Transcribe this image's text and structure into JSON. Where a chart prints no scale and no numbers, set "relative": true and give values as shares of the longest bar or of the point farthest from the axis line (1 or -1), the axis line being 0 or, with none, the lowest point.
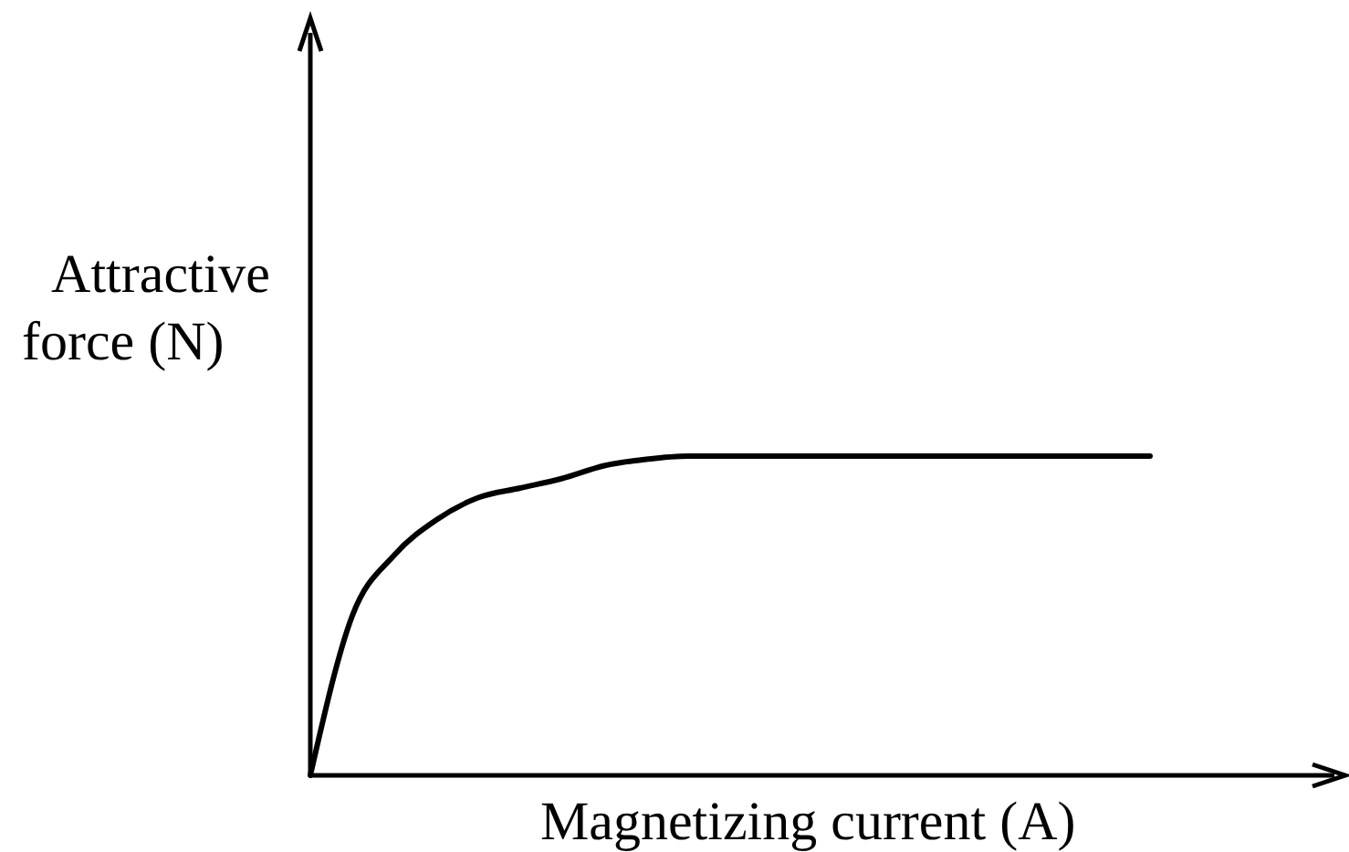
{
  "chart_data": {
    "type": "line",
    "relative": true,
    "xlabel": "Magnetizing current (A)",
    "ylabel": "Attractive force (N)",
    "marker": "none",
    "categories": [
      null,
      null,
      null,
      null,
      null,
      null,
      null,
      null,
      null,
      null,
      null,
      null,
      null,
      null,
      null,
      null,
      null,
      null,
      null,
      null,
      null,
      null,
      null,
      null,
      null
    ],
    "series": [
      {
        "color": "#000000",
        "values": [
          0,
          0.5,
          0.69,
          0.8,
          0.87,
          0.9,
          0.93,
          0.97,
          0.99,
          1,
          1,
          1,
          1,
          1,
          1,
          1,
          1,
          1,
          1,
          1,
          1,
          null,
          null,
          null,
          null
        ]
      }
    ]
  }
}
